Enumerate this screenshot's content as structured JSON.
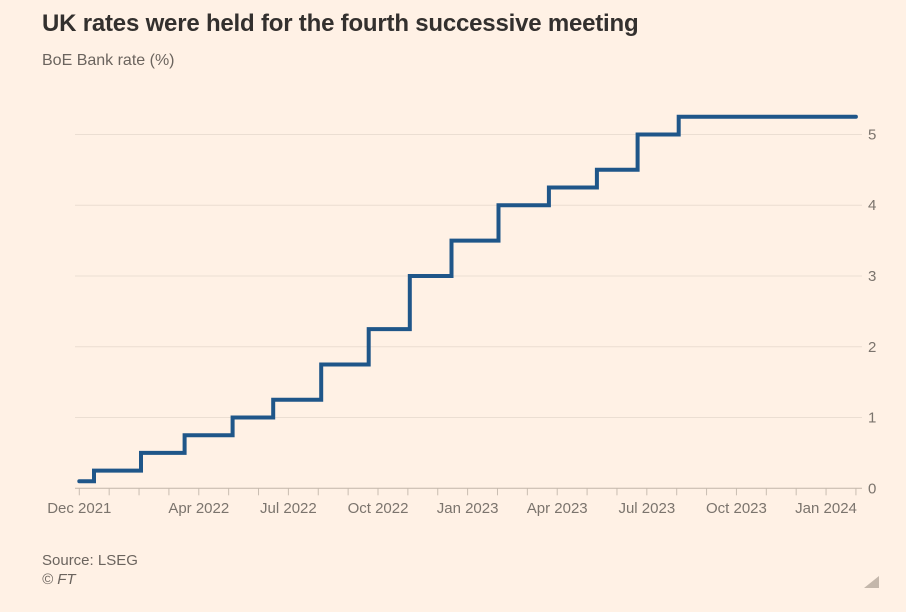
{
  "page": {
    "background": "#FFF1E5"
  },
  "header": {
    "title": "UK rates were held for the fourth successive meeting",
    "subtitle": "BoE Bank rate (%)"
  },
  "footer": {
    "source": "Source: LSEG",
    "credit": "© FT"
  },
  "chart_data": {
    "type": "line",
    "step": true,
    "title": "UK rates were held for the fourth successive meeting",
    "subtitle": "BoE Bank rate (%)",
    "ylabel": "BoE Bank rate (%)",
    "xlabel": "",
    "legend": "none",
    "grid": "horizontal",
    "series": [
      {
        "name": "BoE Bank rate (%)",
        "color": "#1F5689",
        "points": [
          [
            "2021-12-01",
            0.1
          ],
          [
            "2021-12-16",
            0.25
          ],
          [
            "2022-02-03",
            0.5
          ],
          [
            "2022-03-17",
            0.75
          ],
          [
            "2022-05-05",
            1.0
          ],
          [
            "2022-06-16",
            1.25
          ],
          [
            "2022-08-04",
            1.75
          ],
          [
            "2022-09-22",
            2.25
          ],
          [
            "2022-11-03",
            3.0
          ],
          [
            "2022-12-15",
            3.5
          ],
          [
            "2023-02-02",
            4.0
          ],
          [
            "2023-03-23",
            4.25
          ],
          [
            "2023-05-11",
            4.5
          ],
          [
            "2023-06-22",
            5.0
          ],
          [
            "2023-08-03",
            5.25
          ],
          [
            "2024-02-01",
            5.25
          ]
        ]
      }
    ],
    "x_axis": {
      "start_month": "2021-12",
      "end_month": "2024-02",
      "tick_interval": "month",
      "labels": [
        [
          "Dec 2021",
          0
        ],
        [
          "Apr 2022",
          4
        ],
        [
          "Jul 2022",
          7
        ],
        [
          "Oct 2022",
          10
        ],
        [
          "Jan 2023",
          13
        ],
        [
          "Apr 2023",
          16
        ],
        [
          "Jul 2023",
          19
        ],
        [
          "Oct 2023",
          22
        ],
        [
          "Jan 2024",
          25
        ]
      ]
    },
    "y_axis": {
      "min": 0,
      "max": 5.5,
      "ticks": [
        0,
        1,
        2,
        3,
        4,
        5
      ],
      "side": "right"
    },
    "colors": {
      "background": "#FFF1E5",
      "grid": "#EBDED2",
      "axis": "#C2B6AA",
      "tick": "#C9BDB1",
      "axis_label": "#7B746D"
    }
  }
}
